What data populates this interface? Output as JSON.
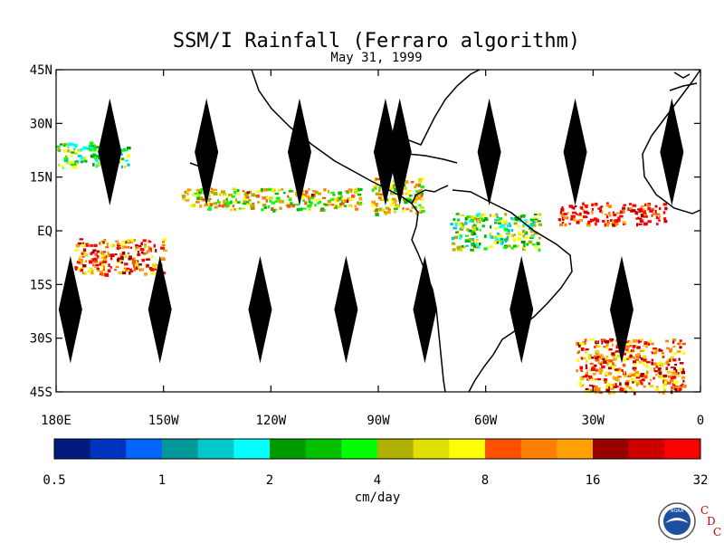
{
  "title": "SSM/I Rainfall (Ferraro algorithm)",
  "subtitle": "May 31, 1999",
  "map": {
    "lon_range": [
      -180,
      0
    ],
    "lat_range": [
      -45,
      45
    ],
    "lat_ticks": [
      {
        "value": 45,
        "label": "45N"
      },
      {
        "value": 30,
        "label": "30N"
      },
      {
        "value": 15,
        "label": "15N"
      },
      {
        "value": 0,
        "label": "EQ"
      },
      {
        "value": -15,
        "label": "15S"
      },
      {
        "value": -30,
        "label": "30S"
      },
      {
        "value": -45,
        "label": "45S"
      }
    ],
    "lon_ticks": [
      {
        "value": -180,
        "label": "180E"
      },
      {
        "value": -150,
        "label": "150W"
      },
      {
        "value": -120,
        "label": "120W"
      },
      {
        "value": -90,
        "label": "90W"
      },
      {
        "value": -60,
        "label": "60W"
      },
      {
        "value": -30,
        "label": "30W"
      },
      {
        "value": 0,
        "label": "0"
      }
    ],
    "data_gaps_lon": [
      -165,
      -138,
      -112,
      -88,
      -84,
      -59,
      -35,
      -8,
      -176,
      -151,
      -123,
      -99,
      -77,
      -50,
      -22
    ],
    "rain_bands": [
      {
        "name": "itcz-pacific",
        "lon": [
          -145,
          -95
        ],
        "lat": [
          6,
          12
        ],
        "level": 3
      },
      {
        "name": "itcz-atlantic",
        "lon": [
          -40,
          -10
        ],
        "lat": [
          2,
          8
        ],
        "level": 5
      },
      {
        "name": "spcz",
        "lon": [
          -175,
          -150
        ],
        "lat": [
          -12,
          -2
        ],
        "level": 4
      },
      {
        "name": "south-atlantic-front",
        "lon": [
          -35,
          -5
        ],
        "lat": [
          -45,
          -30
        ],
        "level": 4
      },
      {
        "name": "amazon",
        "lon": [
          -70,
          -45
        ],
        "lat": [
          -5,
          5
        ],
        "level": 2
      },
      {
        "name": "central-america",
        "lon": [
          -92,
          -78
        ],
        "lat": [
          5,
          15
        ],
        "level": 3
      },
      {
        "name": "north-pacific",
        "lon": [
          -180,
          -160
        ],
        "lat": [
          18,
          25
        ],
        "level": 2
      }
    ]
  },
  "colorbar": {
    "colors": [
      "#001a80",
      "#0033c0",
      "#0066ff",
      "#009999",
      "#00c8c8",
      "#00ffff",
      "#009900",
      "#00c000",
      "#00ff00",
      "#b0b000",
      "#e0e000",
      "#ffff00",
      "#ff5000",
      "#ff8000",
      "#ffa000",
      "#990000",
      "#cc0000",
      "#ff0000"
    ],
    "tick_labels": [
      "0.5",
      "1",
      "2",
      "4",
      "8",
      "16",
      "32"
    ],
    "unit_label": "cm/day"
  },
  "logo": {
    "noaa": "NOAA",
    "cdc_letters": [
      "C",
      "D",
      "C"
    ]
  }
}
